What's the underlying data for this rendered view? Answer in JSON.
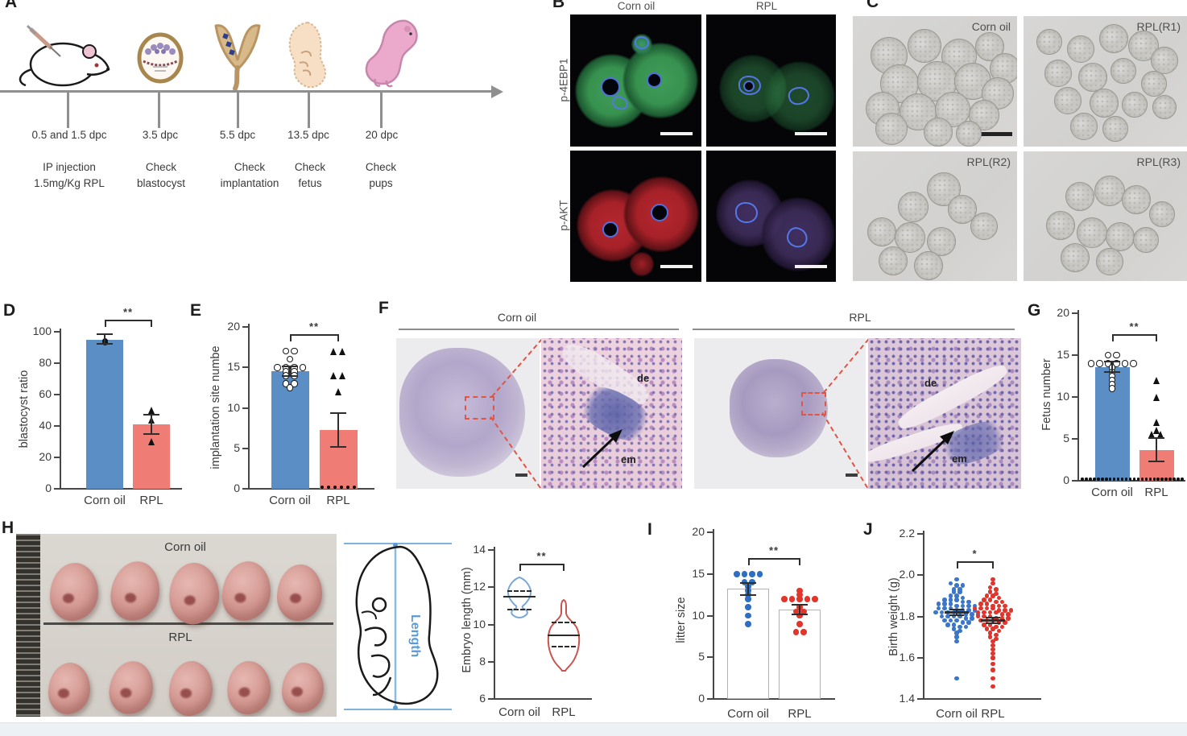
{
  "panels": {
    "a": "A",
    "b": "B",
    "c": "C",
    "d": "D",
    "e": "E",
    "f": "F",
    "g": "G",
    "h": "H",
    "i": "I",
    "j": "J"
  },
  "timeline": {
    "steps": [
      {
        "time": "0.5 and 1.5 dpc",
        "desc": [
          "IP injection",
          "1.5mg/Kg RPL"
        ]
      },
      {
        "time": "3.5 dpc",
        "desc": [
          "Check",
          "blastocyst"
        ]
      },
      {
        "time": "5.5 dpc",
        "desc": [
          "Check",
          "implantation"
        ]
      },
      {
        "time": "13.5 dpc",
        "desc": [
          "Check",
          "fetus"
        ]
      },
      {
        "time": "20 dpc",
        "desc": [
          "Check",
          "pups"
        ]
      }
    ]
  },
  "panel_b": {
    "col_headers": [
      "Corn oil",
      "RPL"
    ],
    "row_labels": [
      "p-4EBP1",
      "p-AKT"
    ]
  },
  "panel_c": {
    "tile_labels": [
      "Corn oil",
      "RPL(R1)",
      "RPL(R2)",
      "RPL(R3)"
    ]
  },
  "panel_f": {
    "group_headers": [
      "Corn oil",
      "RPL"
    ],
    "labels": {
      "de": "de",
      "em": "em"
    }
  },
  "panel_h": {
    "photo_labels": [
      "Corn oil",
      "RPL"
    ],
    "length_label": "Length"
  },
  "chart_data": [
    {
      "type": "bar",
      "ylabel": "blastocyst ratio",
      "ylim": [
        0,
        100
      ],
      "ystep": 20,
      "categories": [
        "Corn oil",
        "RPL"
      ],
      "sig": "**",
      "series": [
        {
          "name": "Corn oil",
          "bar": 95,
          "bar_fill": "#5b8ec4",
          "err": [
            95.5,
            3
          ],
          "points": {
            "shape": "circle",
            "color": "#111111",
            "size": 7,
            "values": [
              93,
              94
            ]
          }
        },
        {
          "name": "RPL",
          "bar": 41,
          "bar_fill": "#ef7d76",
          "err": [
            41,
            6
          ],
          "points": {
            "shape": "triangle",
            "color": "#111111",
            "size": 9,
            "values": [
              50,
              44,
              30
            ]
          }
        }
      ]
    },
    {
      "type": "bar",
      "ylabel": "implantation site numbe",
      "ylim": [
        0,
        20
      ],
      "ystep": 5,
      "categories": [
        "Corn oil",
        "RPL"
      ],
      "sig": "**",
      "series": [
        {
          "name": "Corn oil",
          "bar": 14.5,
          "bar_fill": "#5b8ec4",
          "err": [
            14.5,
            0.6
          ],
          "points": {
            "shape": "circle_open",
            "size": 8.5,
            "values": [
              17,
              17,
              16,
              15,
              15,
              15,
              15,
              14.5,
              14.5,
              14,
              14,
              13,
              13,
              12.5
            ]
          }
        },
        {
          "name": "RPL",
          "bar": 7.3,
          "bar_fill": "#ef7d76",
          "err": [
            7.3,
            2.1
          ],
          "zeros": 6,
          "points": {
            "shape": "triangle",
            "color": "#111111",
            "size": 9,
            "values": [
              17,
              17,
              14,
              14,
              12
            ]
          }
        }
      ]
    },
    {
      "type": "bar",
      "ylabel": "Fetus number",
      "ylim": [
        0,
        20
      ],
      "ystep": 5,
      "categories": [
        "Corn oil",
        "RPL"
      ],
      "sig": "**",
      "series": [
        {
          "name": "Corn oil",
          "bar": 13.6,
          "bar_fill": "#5b8ec4",
          "err": [
            13.6,
            0.6
          ],
          "points": {
            "shape": "circle_open",
            "size": 8.5,
            "values": [
              15,
              15,
              14,
              14,
              14,
              14,
              14,
              14,
              13.5,
              13,
              12.5,
              12,
              11.5,
              11
            ]
          }
        },
        {
          "name": "RPL",
          "bar": 3.7,
          "bar_fill": "#ef7d76",
          "err": [
            3.7,
            1.4
          ],
          "points": {
            "shape": "triangle",
            "color": "#111111",
            "size": 9,
            "values": [
              12,
              10,
              7,
              6,
              5.5,
              5.5
            ]
          }
        }
      ]
    },
    {
      "type": "violin",
      "ylabel": "Embryo length (mm)",
      "ylim": [
        6,
        14
      ],
      "ystep": 2,
      "categories": [
        "Corn oil",
        "RPL"
      ],
      "sig": "**",
      "series": [
        {
          "name": "Corn oil",
          "color": "#7aa7d6",
          "stats": {
            "median": 11.5,
            "q1": 10.8,
            "q3": 11.8,
            "min": 10.4,
            "max": 12.5
          }
        },
        {
          "name": "RPL",
          "color": "#c9534f",
          "stats": {
            "median": 9.4,
            "q1": 8.8,
            "q3": 10.1,
            "min": 7.5,
            "max": 11.3
          }
        }
      ]
    },
    {
      "type": "bar",
      "ylabel": "litter size",
      "ylim": [
        0,
        20
      ],
      "ystep": 5,
      "categories": [
        "Corn oil",
        "RPL"
      ],
      "sig": "**",
      "series": [
        {
          "name": "Corn oil",
          "bar": 13.2,
          "bar_fill": "#ffffff",
          "bar_border": "#b3b3b3",
          "err": [
            13.2,
            0.7
          ],
          "points": {
            "shape": "circle",
            "color": "#2e6fc3",
            "size": 7.5,
            "values": [
              15,
              15,
              15,
              15,
              14,
              14,
              13.5,
              13,
              12.5,
              12,
              11,
              10,
              9
            ]
          }
        },
        {
          "name": "RPL",
          "bar": 10.7,
          "bar_fill": "#ffffff",
          "bar_border": "#b3b3b3",
          "err": [
            10.7,
            0.6
          ],
          "points": {
            "shape": "circle",
            "color": "#e2352b",
            "size": 7.5,
            "values": [
              13,
              12.5,
              12,
              12,
              12,
              12,
              12,
              11,
              10.5,
              10.5,
              10,
              9,
              8,
              8
            ]
          }
        }
      ]
    },
    {
      "type": "scatter",
      "ylabel": "Birth weight (g)",
      "ylim": [
        1.4,
        2.2
      ],
      "ystep": 0.2,
      "categories": [
        "Corn oil",
        "RPL"
      ],
      "sig": "*",
      "series": [
        {
          "name": "Corn oil",
          "err": [
            1.82,
            0.015
          ],
          "points": {
            "shape": "circle",
            "color": "#3b76c8",
            "size": 5.5,
            "values": [
              1.98,
              1.96,
              1.95,
              1.95,
              1.93,
              1.93,
              1.92,
              1.92,
              1.9,
              1.9,
              1.89,
              1.88,
              1.88,
              1.88,
              1.87,
              1.87,
              1.86,
              1.86,
              1.86,
              1.85,
              1.85,
              1.85,
              1.85,
              1.84,
              1.84,
              1.84,
              1.83,
              1.83,
              1.83,
              1.83,
              1.82,
              1.82,
              1.82,
              1.82,
              1.82,
              1.81,
              1.81,
              1.81,
              1.8,
              1.8,
              1.8,
              1.8,
              1.79,
              1.79,
              1.78,
              1.78,
              1.78,
              1.77,
              1.77,
              1.76,
              1.76,
              1.75,
              1.75,
              1.74,
              1.73,
              1.72,
              1.7,
              1.68,
              1.5
            ]
          }
        },
        {
          "name": "RPL",
          "err": [
            1.78,
            0.015
          ],
          "points": {
            "shape": "circle",
            "color": "#df352c",
            "size": 5.5,
            "values": [
              1.98,
              1.96,
              1.94,
              1.93,
              1.92,
              1.91,
              1.9,
              1.9,
              1.89,
              1.88,
              1.88,
              1.87,
              1.87,
              1.86,
              1.86,
              1.85,
              1.85,
              1.85,
              1.84,
              1.84,
              1.84,
              1.84,
              1.83,
              1.83,
              1.83,
              1.82,
              1.82,
              1.82,
              1.82,
              1.81,
              1.81,
              1.8,
              1.8,
              1.8,
              1.79,
              1.79,
              1.79,
              1.78,
              1.78,
              1.78,
              1.77,
              1.77,
              1.76,
              1.76,
              1.75,
              1.75,
              1.74,
              1.74,
              1.73,
              1.72,
              1.71,
              1.7,
              1.69,
              1.68,
              1.66,
              1.64,
              1.62,
              1.6,
              1.57,
              1.54,
              1.5,
              1.46
            ]
          }
        }
      ]
    }
  ]
}
